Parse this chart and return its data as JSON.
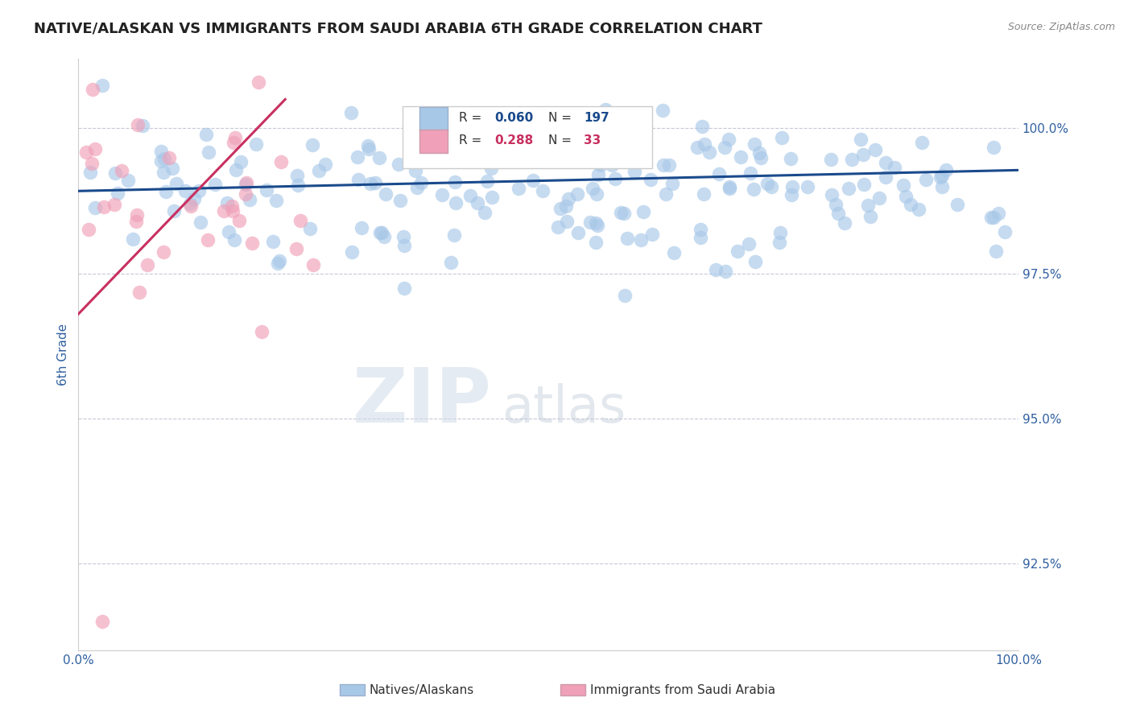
{
  "title": "NATIVE/ALASKAN VS IMMIGRANTS FROM SAUDI ARABIA 6TH GRADE CORRELATION CHART",
  "source": "Source: ZipAtlas.com",
  "xlabel": "",
  "ylabel": "6th Grade",
  "xlim": [
    0.0,
    100.0
  ],
  "ylim": [
    91.0,
    101.2
  ],
  "yticks": [
    92.5,
    95.0,
    97.5,
    100.0
  ],
  "ytick_labels": [
    "92.5%",
    "95.0%",
    "97.5%",
    "100.0%"
  ],
  "xticks": [
    0.0,
    100.0
  ],
  "xtick_labels": [
    "0.0%",
    "100.0%"
  ],
  "blue_R": 0.06,
  "blue_N": 197,
  "pink_R": 0.288,
  "pink_N": 33,
  "blue_color": "#a8c8e8",
  "pink_color": "#f0a0b8",
  "blue_line_color": "#1a4a8c",
  "pink_line_color": "#c83060",
  "legend_blue_label": "Natives/Alaskans",
  "legend_pink_label": "Immigrants from Saudi Arabia",
  "watermark_zip": "ZIP",
  "watermark_atlas": "atlas",
  "background_color": "#ffffff",
  "title_fontsize": 13,
  "tick_label_color": "#3060a0",
  "ylabel_color": "#3060a0",
  "blue_trend_y0": 98.92,
  "blue_trend_y1": 99.28,
  "pink_trend_x0": 0.0,
  "pink_trend_x1": 22.0,
  "pink_trend_y0": 96.8,
  "pink_trend_y1": 100.5
}
